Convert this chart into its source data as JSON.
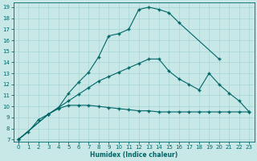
{
  "xlabel": "Humidex (Indice chaleur)",
  "bg_color": "#c8e8e8",
  "grid_color": "#a8d4d4",
  "line_color": "#006666",
  "xlim": [
    -0.5,
    23.5
  ],
  "ylim": [
    6.8,
    19.4
  ],
  "xticks": [
    0,
    1,
    2,
    3,
    4,
    5,
    6,
    7,
    8,
    9,
    10,
    11,
    12,
    13,
    14,
    15,
    16,
    17,
    18,
    19,
    20,
    21,
    22,
    23
  ],
  "yticks": [
    7,
    8,
    9,
    10,
    11,
    12,
    13,
    14,
    15,
    16,
    17,
    18,
    19
  ],
  "line1_x": [
    0,
    1,
    2,
    3,
    4,
    5,
    6,
    7,
    8,
    9,
    10,
    11,
    12,
    13,
    14,
    15,
    16,
    20
  ],
  "line1_y": [
    7.0,
    7.7,
    8.8,
    9.3,
    9.9,
    11.2,
    12.2,
    13.1,
    14.5,
    16.4,
    16.6,
    17.0,
    18.8,
    19.0,
    18.8,
    18.5,
    17.6,
    14.3
  ],
  "line2_x": [
    0,
    3,
    4,
    5,
    6,
    7,
    8,
    9,
    10,
    11,
    12,
    13,
    14,
    15,
    16,
    17,
    18,
    19,
    20,
    21,
    22,
    23
  ],
  "line2_y": [
    7.0,
    9.3,
    9.8,
    10.1,
    10.1,
    10.1,
    10.0,
    9.9,
    9.8,
    9.7,
    9.6,
    9.6,
    9.5,
    9.5,
    9.5,
    9.5,
    9.5,
    9.5,
    9.5,
    9.5,
    9.5,
    9.5
  ],
  "line3_x": [
    0,
    3,
    4,
    5,
    6,
    7,
    8,
    9,
    10,
    11,
    12,
    13,
    14,
    15,
    16,
    17,
    18,
    19,
    20,
    21,
    22,
    23
  ],
  "line3_y": [
    7.0,
    9.3,
    9.9,
    10.5,
    11.1,
    11.7,
    12.3,
    12.7,
    13.1,
    13.5,
    13.9,
    14.3,
    14.3,
    13.2,
    12.5,
    12.0,
    11.5,
    13.0,
    12.0,
    11.2,
    10.5,
    9.5
  ]
}
